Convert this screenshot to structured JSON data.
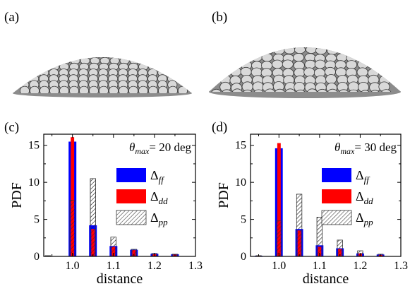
{
  "figure": {
    "panels": {
      "a": {
        "label": "(a)"
      },
      "b": {
        "label": "(b)"
      },
      "c": {
        "label": "(c)"
      },
      "d": {
        "label": "(d)"
      }
    }
  },
  "colors": {
    "ff": "#0000ff",
    "dd": "#ff0000",
    "pp_hatch": "#555555",
    "dome": "#8c8c8c",
    "particle_fill": "#d9d9d9",
    "particle_edge": "#3a3a3a"
  },
  "legend": {
    "ff": {
      "base": "Δ",
      "sub": "ff"
    },
    "dd": {
      "base": "Δ",
      "sub": "dd"
    },
    "pp": {
      "base": "Δ",
      "sub": "pp"
    }
  },
  "chart_data": [
    {
      "panel": "c",
      "type": "bar",
      "annotation": {
        "symbol": "θ",
        "sub": "max",
        "text": "= 20 deg"
      },
      "xlabel": "distance",
      "ylabel": "PDF",
      "xlim": [
        0.93,
        1.3
      ],
      "ylim": [
        0,
        16.5
      ],
      "xticks": [
        "1.0",
        "1.1",
        "1.2",
        "1.3"
      ],
      "yticks": [
        "0",
        "5",
        "10",
        "15"
      ],
      "legend_position": "right",
      "series": [
        {
          "key": "ff",
          "style": "solid",
          "color": "#0000ff",
          "x": [
            1.0,
            1.05,
            1.1,
            1.15,
            1.2,
            1.25
          ],
          "values": [
            15.5,
            4.2,
            1.4,
            0.9,
            0.35,
            0.3
          ]
        },
        {
          "key": "dd",
          "style": "solid",
          "color": "#ff0000",
          "x": [
            1.0,
            1.05,
            1.1,
            1.15,
            1.2,
            1.25
          ],
          "values": [
            16.1,
            3.7,
            1.3,
            0.85,
            0.3,
            0.25
          ]
        },
        {
          "key": "pp",
          "style": "hatched",
          "color": "#555555",
          "x": [
            0.94,
            1.0,
            1.05,
            1.1,
            1.15,
            1.2,
            1.25
          ],
          "values": [
            0.1,
            7.6,
            10.5,
            2.6,
            0.95,
            0.4,
            0.3
          ]
        }
      ]
    },
    {
      "panel": "d",
      "type": "bar",
      "annotation": {
        "symbol": "θ",
        "sub": "max",
        "text": "= 30 deg"
      },
      "xlabel": "distance",
      "ylabel": "PDF",
      "xlim": [
        0.93,
        1.3
      ],
      "ylim": [
        0,
        16.5
      ],
      "xticks": [
        "1.0",
        "1.1",
        "1.2",
        "1.3"
      ],
      "yticks": [
        "0",
        "5",
        "10",
        "15"
      ],
      "legend_position": "right",
      "series": [
        {
          "key": "ff",
          "style": "solid",
          "color": "#0000ff",
          "x": [
            0.95,
            1.0,
            1.05,
            1.1,
            1.15,
            1.2,
            1.25
          ],
          "values": [
            0.1,
            14.6,
            3.7,
            1.5,
            1.1,
            0.4,
            0.25
          ]
        },
        {
          "key": "dd",
          "style": "solid",
          "color": "#ff0000",
          "x": [
            0.95,
            1.0,
            1.05,
            1.1,
            1.15,
            1.2,
            1.25
          ],
          "values": [
            0.1,
            15.3,
            3.5,
            1.3,
            1.0,
            0.4,
            0.2
          ]
        },
        {
          "key": "pp",
          "style": "hatched",
          "color": "#555555",
          "x": [
            0.95,
            1.0,
            1.05,
            1.1,
            1.15,
            1.2,
            1.25
          ],
          "values": [
            0.1,
            4.8,
            8.4,
            5.3,
            2.2,
            0.75,
            0.3
          ]
        }
      ]
    }
  ]
}
